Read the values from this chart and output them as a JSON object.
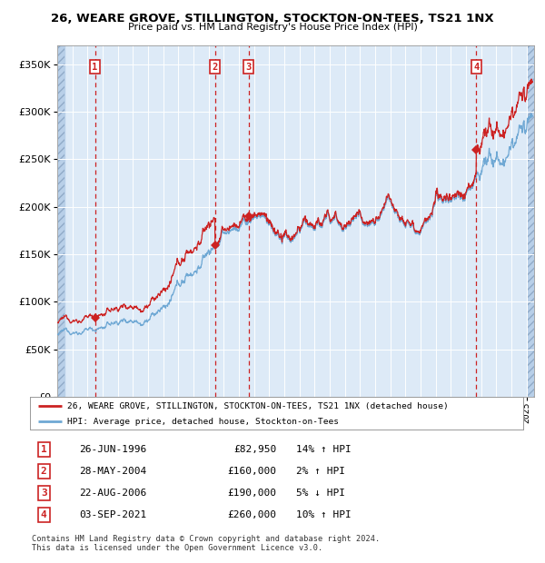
{
  "title": "26, WEARE GROVE, STILLINGTON, STOCKTON-ON-TEES, TS21 1NX",
  "subtitle": "Price paid vs. HM Land Registry's House Price Index (HPI)",
  "legend_line1": "26, WEARE GROVE, STILLINGTON, STOCKTON-ON-TEES, TS21 1NX (detached house)",
  "legend_line2": "HPI: Average price, detached house, Stockton-on-Tees",
  "footer1": "Contains HM Land Registry data © Crown copyright and database right 2024.",
  "footer2": "This data is licensed under the Open Government Licence v3.0.",
  "transactions": [
    {
      "num": 1,
      "date": "26-JUN-1996",
      "price": 82950,
      "pct": "14%",
      "dir": "↑"
    },
    {
      "num": 2,
      "date": "28-MAY-2004",
      "price": 160000,
      "pct": "2%",
      "dir": "↑"
    },
    {
      "num": 3,
      "date": "22-AUG-2006",
      "price": 190000,
      "pct": "5%",
      "dir": "↓"
    },
    {
      "num": 4,
      "date": "03-SEP-2021",
      "price": 260000,
      "pct": "10%",
      "dir": "↑"
    }
  ],
  "transaction_dates_decimal": [
    1996.49,
    2004.41,
    2006.64,
    2021.67
  ],
  "ylim": [
    0,
    370000
  ],
  "xlim_start": 1994.0,
  "xlim_end": 2025.5,
  "hpi_color": "#6fa8d4",
  "price_color": "#cc2222",
  "vline_color": "#cc2222",
  "bg_color": "#ddeaf7",
  "hatch_color": "#b8cfe8",
  "grid_color": "#ffffff",
  "box_color": "#cc2222",
  "marker_color": "#cc2222"
}
